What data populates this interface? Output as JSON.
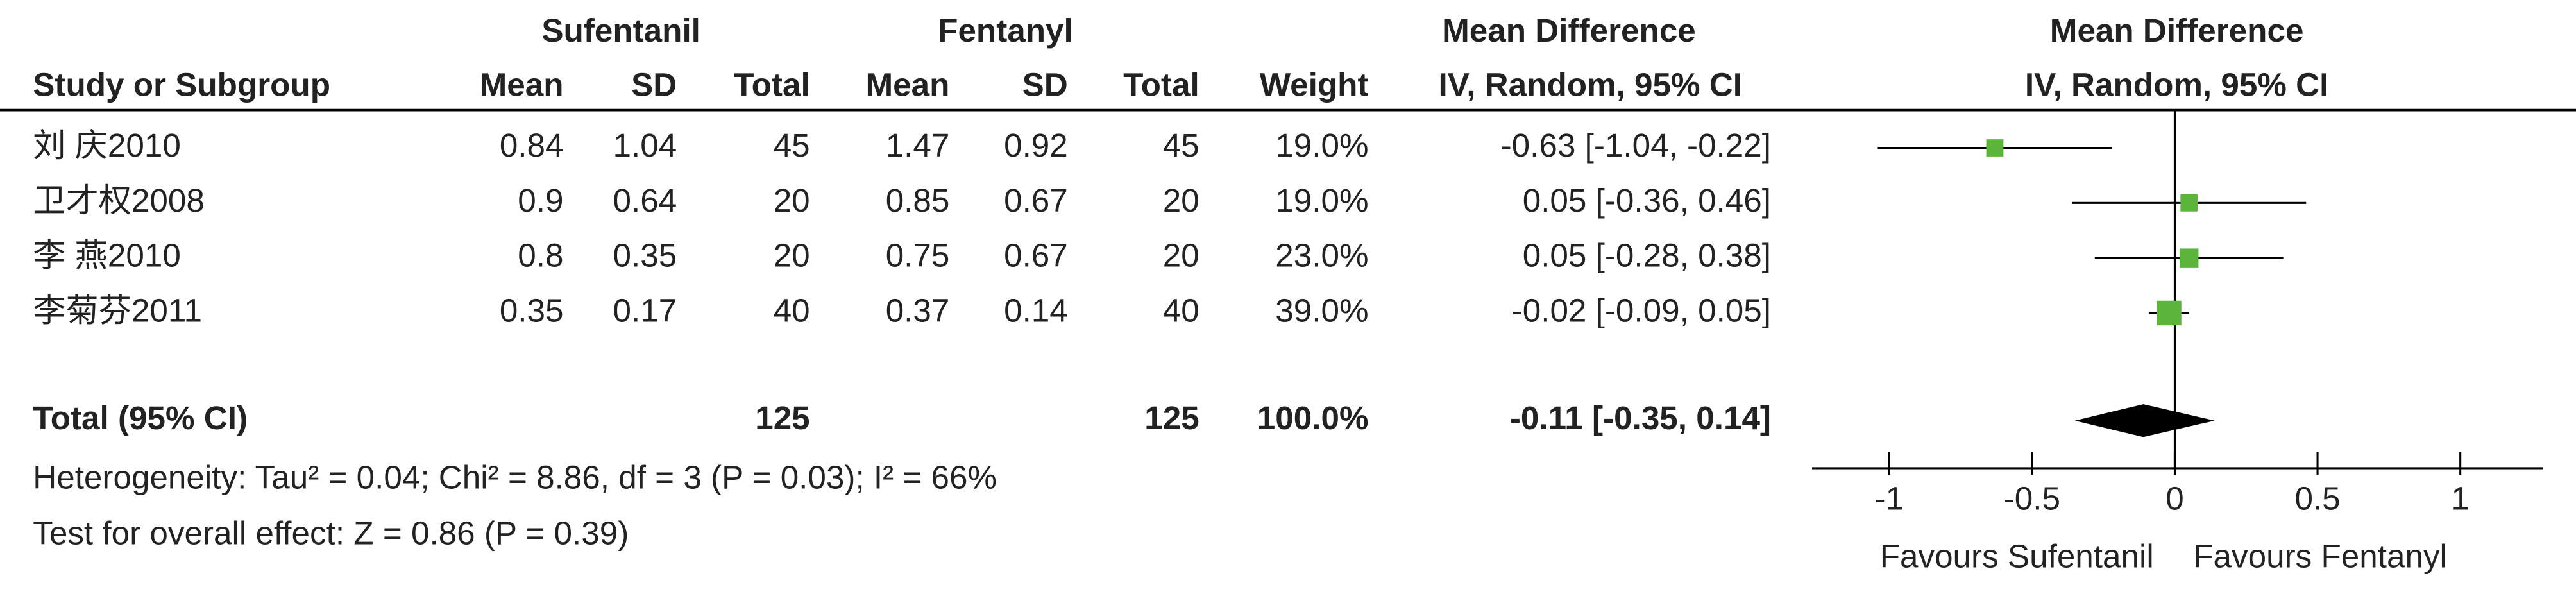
{
  "chart_data": {
    "type": "forest",
    "group_headers": {
      "experimental": "Sufentanil",
      "control": "Fentanyl",
      "table_effect": "Mean Difference",
      "plot_effect": "Mean Difference"
    },
    "columns": {
      "study": "Study or Subgroup",
      "e_mean": "Mean",
      "e_sd": "SD",
      "e_total": "Total",
      "c_mean": "Mean",
      "c_sd": "SD",
      "c_total": "Total",
      "weight": "Weight",
      "table_method": "IV, Random, 95% CI",
      "plot_method": "IV, Random, 95% CI"
    },
    "studies": [
      {
        "name": "刘 庆2010",
        "e_mean": 0.84,
        "e_sd": 1.04,
        "e_total": 45,
        "c_mean": 1.47,
        "c_sd": 0.92,
        "c_total": 45,
        "weight": 19.0,
        "weight_label": "19.0%",
        "mean_difference": -0.63,
        "ci": [
          -1.04,
          -0.22
        ],
        "ci_label": "-0.63 [-1.04, -0.22]"
      },
      {
        "name": "卫才权2008",
        "e_mean": 0.9,
        "e_sd": 0.64,
        "e_total": 20,
        "c_mean": 0.85,
        "c_sd": 0.67,
        "c_total": 20,
        "weight": 19.0,
        "weight_label": "19.0%",
        "mean_difference": 0.05,
        "ci": [
          -0.36,
          0.46
        ],
        "ci_label": "0.05 [-0.36, 0.46]"
      },
      {
        "name": "李 燕2010",
        "e_mean": 0.8,
        "e_sd": 0.35,
        "e_total": 20,
        "c_mean": 0.75,
        "c_sd": 0.67,
        "c_total": 20,
        "weight": 23.0,
        "weight_label": "23.0%",
        "mean_difference": 0.05,
        "ci": [
          -0.28,
          0.38
        ],
        "ci_label": "0.05 [-0.28, 0.38]"
      },
      {
        "name": "李菊芬2011",
        "e_mean": 0.35,
        "e_sd": 0.17,
        "e_total": 40,
        "c_mean": 0.37,
        "c_sd": 0.14,
        "c_total": 40,
        "weight": 39.0,
        "weight_label": "39.0%",
        "mean_difference": -0.02,
        "ci": [
          -0.09,
          0.05
        ],
        "ci_label": "-0.02 [-0.09, 0.05]"
      }
    ],
    "total": {
      "name": "Total (95% CI)",
      "e_total": 125,
      "c_total": 125,
      "weight_label": "100.0%",
      "mean_difference": -0.11,
      "ci": [
        -0.35,
        0.14
      ],
      "ci_label": "-0.11 [-0.35, 0.14]"
    },
    "heterogeneity": "Heterogeneity: Tau² = 0.04; Chi² = 8.86, df = 3 (P = 0.03); I² = 66%",
    "overall_effect": "Test for overall effect: Z = 0.86 (P = 0.39)",
    "xlim": [
      -1.27,
      1.29
    ],
    "xticks": [
      -1,
      -0.5,
      0,
      0.5,
      1
    ],
    "x_label_left": "Favours Sufentanil",
    "x_label_right": "Favours Fentanyl",
    "marker_color": "#5cb63c",
    "diamond_color": "#000000"
  }
}
